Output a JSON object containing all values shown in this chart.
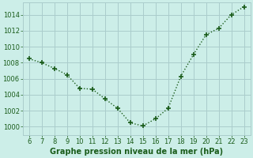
{
  "x": [
    6,
    7,
    8,
    9,
    10,
    11,
    12,
    13,
    14,
    15,
    16,
    17,
    18,
    19,
    20,
    21,
    22,
    23
  ],
  "y": [
    1008.5,
    1008.0,
    1007.3,
    1006.5,
    1004.8,
    1004.7,
    1003.5,
    1002.3,
    1000.5,
    1000.1,
    1001.0,
    1002.3,
    1006.3,
    1009.0,
    1011.5,
    1012.3,
    1014.0,
    1015.0
  ],
  "line_color": "#1a5c1a",
  "marker": "+",
  "marker_size": 5,
  "bg_color": "#cceee8",
  "grid_color": "#aacccc",
  "xlabel": "Graphe pression niveau de la mer (hPa)",
  "xlabel_fontsize": 7.0,
  "xlabel_color": "#1a5c1a",
  "xlabel_bold": true,
  "tick_color": "#1a5c1a",
  "tick_fontsize": 6.0,
  "ylim": [
    999.0,
    1015.5
  ],
  "xlim": [
    5.5,
    23.5
  ],
  "yticks": [
    1000,
    1002,
    1004,
    1006,
    1008,
    1010,
    1012,
    1014
  ],
  "xticks": [
    6,
    7,
    8,
    9,
    10,
    11,
    12,
    13,
    14,
    15,
    16,
    17,
    18,
    19,
    20,
    21,
    22,
    23
  ]
}
